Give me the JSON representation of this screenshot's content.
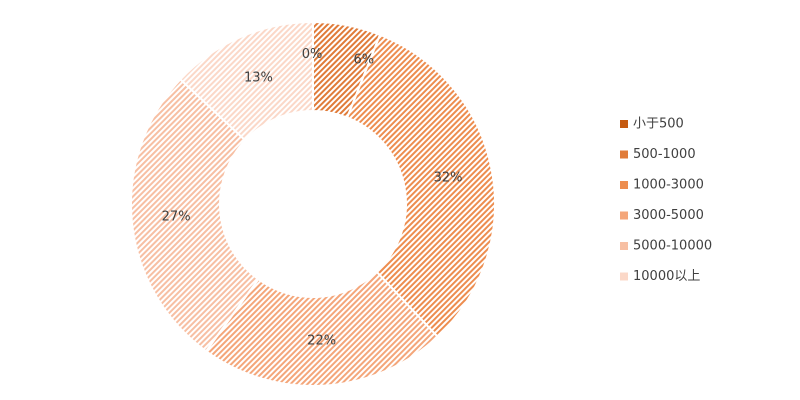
{
  "chart_data": {
    "type": "pie",
    "style": "donut",
    "title": "",
    "categories": [
      "小于500",
      "500-1000",
      "1000-3000",
      "3000-5000",
      "5000-10000",
      "10000以上"
    ],
    "values": [
      0,
      6,
      32,
      22,
      27,
      13
    ],
    "labels": [
      "0%",
      "6%",
      "32%",
      "22%",
      "27%",
      "13%"
    ],
    "colors": [
      "#c55a11",
      "#e07b39",
      "#ed8d4f",
      "#f4a67a",
      "#f7bfa3",
      "#fbd8c8"
    ],
    "fill_pattern": "diagonal-hatch",
    "legend_position": "right"
  }
}
